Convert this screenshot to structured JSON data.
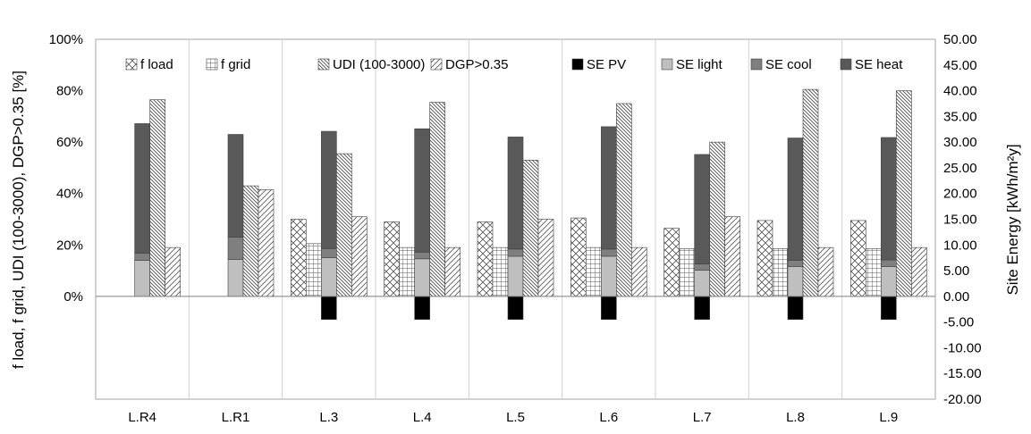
{
  "chart_data": {
    "type": "bar",
    "categories": [
      "L.R4",
      "L.R1",
      "L.3",
      "L.4",
      "L.5",
      "L.6",
      "L.7",
      "L.8",
      "L.9"
    ],
    "left_axis": {
      "label": "f load, f grid, UDI (100-3000), DGP>0.35 [%]",
      "ylim": [
        0,
        100
      ],
      "ticks": [
        "100%",
        "80%",
        "60%",
        "40%",
        "20%",
        "0%"
      ]
    },
    "right_axis": {
      "label": "Site Energy [kWh/m²y]",
      "ylim": [
        -20,
        50
      ],
      "ticks": [
        "50.00",
        "45.00",
        "40.00",
        "35.00",
        "30.00",
        "25.00",
        "20.00",
        "15.00",
        "10.00",
        "5.00",
        "0.00",
        "-5.00",
        "-10.00",
        "-15.00",
        "-20.00"
      ]
    },
    "series": [
      {
        "name": "f load",
        "axis": "left",
        "values": [
          null,
          null,
          30,
          29,
          29,
          30.5,
          26.5,
          29.5,
          29.5
        ]
      },
      {
        "name": "f grid",
        "axis": "left",
        "values": [
          null,
          null,
          20.5,
          19,
          19,
          19,
          18.5,
          18.5,
          18.5
        ]
      },
      {
        "name": "SE PV",
        "axis": "right",
        "values": [
          null,
          null,
          -4.5,
          -4.5,
          -4.5,
          -4.5,
          -4.5,
          -4.5,
          -4.5
        ]
      },
      {
        "name": "SE light",
        "axis": "right",
        "values": [
          7,
          7.2,
          7.5,
          7.3,
          7.8,
          7.8,
          5.1,
          5.8,
          5.8
        ]
      },
      {
        "name": "SE cool",
        "axis": "right",
        "values": [
          1.4,
          4.3,
          1.8,
          1.3,
          1.4,
          1.4,
          1.2,
          1.2,
          1.3
        ]
      },
      {
        "name": "SE heat",
        "axis": "right",
        "values": [
          25.2,
          20,
          22.8,
          24,
          21.8,
          23.8,
          21.3,
          23.8,
          23.8
        ]
      },
      {
        "name": "UDI (100-3000)",
        "axis": "left",
        "values": [
          76.5,
          43,
          55.5,
          75.5,
          53,
          75,
          60,
          80.5,
          80
        ]
      },
      {
        "name": "DGP>0.35",
        "axis": "left",
        "values": [
          19,
          41.5,
          31,
          19,
          30,
          19,
          31,
          19,
          19
        ]
      }
    ],
    "legend": [
      "f load",
      "f grid",
      "UDI (100-3000)",
      "DGP>0.35",
      "SE PV",
      "SE light",
      "SE cool",
      "SE heat"
    ],
    "legend_position": "top",
    "grid": "vertical category separators",
    "colors": {
      "SE PV": "#000000",
      "SE light": "#bfbfbf",
      "SE cool": "#7f7f7f",
      "SE heat": "#595959"
    }
  }
}
